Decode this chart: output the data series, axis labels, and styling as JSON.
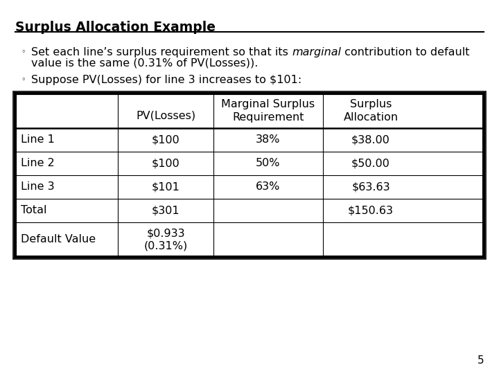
{
  "title": "Surplus Allocation Example",
  "bullet1_pre": "Set each line’s surplus requirement so that its ",
  "bullet1_italic": "marginal",
  "bullet1_post": " contribution to default",
  "bullet1_line2": "value is the same (0.31% of PV(Losses)).",
  "bullet2": "Suppose PV(Losses) for line 3 increases to $101:",
  "table_headers": [
    "",
    "PV(Losses)",
    "Marginal Surplus\nRequirement",
    "Surplus\nAllocation"
  ],
  "table_rows": [
    [
      "Line 1",
      "$100",
      "38%",
      "$38.00"
    ],
    [
      "Line 2",
      "$100",
      "50%",
      "$50.00"
    ],
    [
      "Line 3",
      "$101",
      "63%",
      "$63.63"
    ],
    [
      "Total",
      "$301",
      "",
      "$150.63"
    ],
    [
      "Default Value",
      "$0.933\n(0.31%)",
      "",
      ""
    ]
  ],
  "page_number": "5",
  "background_color": "#ffffff",
  "text_color": "#000000",
  "font_size": 11.5,
  "title_font_size": 13.5
}
